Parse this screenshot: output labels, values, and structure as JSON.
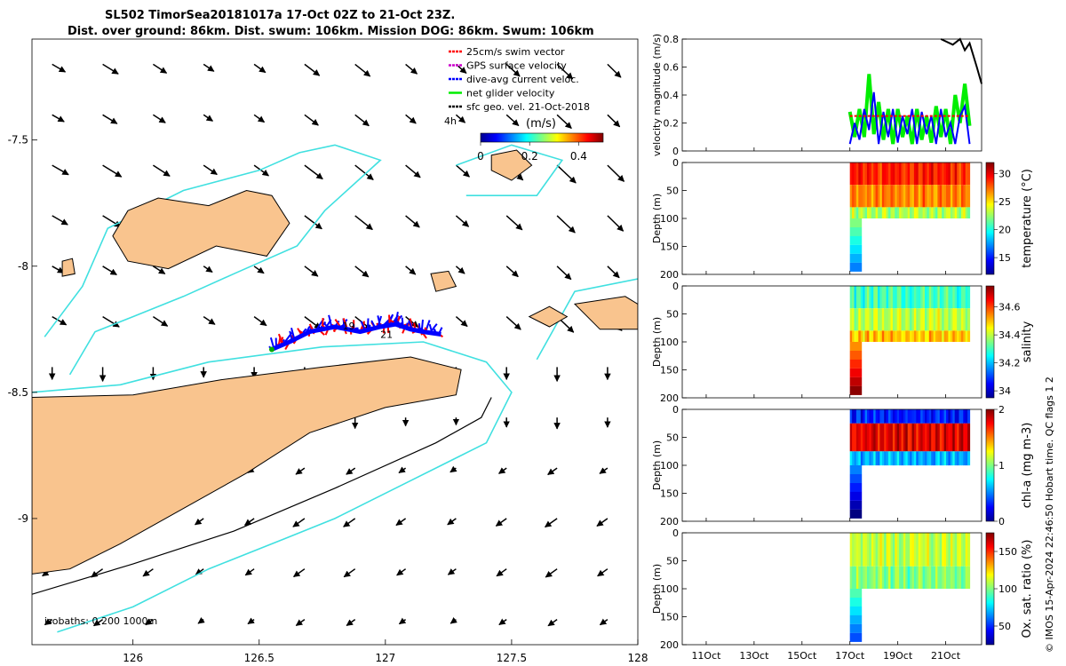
{
  "title_line1": "SL502 TimorSea20181017a 17-Oct 02Z to 21-Oct 23Z.",
  "title_line2": "Dist. over ground: 86km. Dist. swum: 106km. Mission DOG: 86km. Swum: 106km",
  "copyright": "© IMOS 15-Apr-2024 22:46:50 Hobart time. QC flags 1  2",
  "colors": {
    "land": "#f9c48e",
    "isobath_shallow": "#40e0e0",
    "isobath_deep": "#000000",
    "track_swim": "#ff0000",
    "track_current": "#0000ff",
    "net_velocity": "#00ee00",
    "gps_velocity": "#cc00cc"
  },
  "chart_data": [
    {
      "type": "map",
      "name": "glider-track-map",
      "xlim": [
        125.6,
        128.0
      ],
      "ylim": [
        -9.5,
        -7.1
      ],
      "xticks": [
        126,
        126.5,
        127,
        127.5,
        128
      ],
      "xtick_labels": [
        "126",
        "126.5",
        "127",
        "127.5",
        "128"
      ],
      "yticks": [
        -7.5,
        -8,
        -8.5,
        -9
      ],
      "ytick_labels": [
        "-7.5",
        "-8",
        "-8.5",
        "-9"
      ],
      "legend": [
        {
          "label": "25cm/s swim vector",
          "color": "#ff0000"
        },
        {
          "label": "GPS surface velocity",
          "color": "#cc00cc"
        },
        {
          "label": "dive-avg current veloc.",
          "color": "#0000ff"
        },
        {
          "label": "net glider velocity",
          "color": "#00ee00"
        },
        {
          "label": "sfc geo. vel. 21-Oct-2018",
          "color": "#000000"
        }
      ],
      "colorbar": {
        "label": "(m/s)",
        "ticks": [
          "0",
          "0.2",
          "0.4"
        ],
        "range": [
          0,
          0.5
        ],
        "side_label": "4h"
      },
      "isobath_label": "isobaths: 0   200  1000m",
      "track_day_labels": [
        "19",
        "21"
      ],
      "track": [
        [
          126.55,
          -8.33
        ],
        [
          126.62,
          -8.3
        ],
        [
          126.7,
          -8.26
        ],
        [
          126.8,
          -8.24
        ],
        [
          126.9,
          -8.26
        ],
        [
          126.98,
          -8.24
        ],
        [
          127.04,
          -8.23
        ],
        [
          127.1,
          -8.25
        ],
        [
          127.15,
          -8.26
        ],
        [
          127.22,
          -8.27
        ]
      ],
      "islands": [
        [
          [
            125.98,
            -7.78
          ],
          [
            126.1,
            -7.73
          ],
          [
            126.3,
            -7.76
          ],
          [
            126.45,
            -7.7
          ],
          [
            126.55,
            -7.72
          ],
          [
            126.62,
            -7.83
          ],
          [
            126.53,
            -7.96
          ],
          [
            126.33,
            -7.92
          ],
          [
            126.14,
            -8.01
          ],
          [
            125.98,
            -7.98
          ],
          [
            125.92,
            -7.88
          ]
        ],
        [
          [
            125.6,
            -8.52
          ],
          [
            126.0,
            -8.51
          ],
          [
            126.35,
            -8.45
          ],
          [
            126.75,
            -8.4
          ],
          [
            127.1,
            -8.36
          ],
          [
            127.3,
            -8.41
          ],
          [
            127.28,
            -8.51
          ],
          [
            127.0,
            -8.56
          ],
          [
            126.7,
            -8.66
          ],
          [
            126.45,
            -8.82
          ],
          [
            126.2,
            -8.96
          ],
          [
            125.95,
            -9.1
          ],
          [
            125.75,
            -9.2
          ],
          [
            125.6,
            -9.22
          ]
        ],
        [
          [
            127.75,
            -8.15
          ],
          [
            127.95,
            -8.12
          ],
          [
            128.0,
            -8.15
          ],
          [
            128.0,
            -8.25
          ],
          [
            127.85,
            -8.25
          ]
        ],
        [
          [
            127.57,
            -8.2
          ],
          [
            127.65,
            -8.16
          ],
          [
            127.72,
            -8.2
          ],
          [
            127.65,
            -8.24
          ]
        ],
        [
          [
            127.42,
            -7.56
          ],
          [
            127.52,
            -7.54
          ],
          [
            127.58,
            -7.6
          ],
          [
            127.5,
            -7.66
          ],
          [
            127.42,
            -7.62
          ]
        ],
        [
          [
            127.18,
            -8.03
          ],
          [
            127.25,
            -8.02
          ],
          [
            127.28,
            -8.08
          ],
          [
            127.2,
            -8.1
          ]
        ],
        [
          [
            125.72,
            -7.98
          ],
          [
            125.76,
            -7.97
          ],
          [
            125.77,
            -8.03
          ],
          [
            125.72,
            -8.04
          ]
        ]
      ],
      "isobath_200": [
        [
          [
            125.65,
            -8.28
          ],
          [
            125.8,
            -8.08
          ],
          [
            125.9,
            -7.85
          ],
          [
            126.2,
            -7.7
          ],
          [
            126.5,
            -7.62
          ],
          [
            126.66,
            -7.55
          ],
          [
            126.8,
            -7.52
          ],
          [
            126.98,
            -7.58
          ],
          [
            126.76,
            -7.78
          ],
          [
            126.65,
            -7.92
          ],
          [
            126.4,
            -8.03
          ],
          [
            126.2,
            -8.12
          ],
          [
            126.0,
            -8.2
          ],
          [
            125.85,
            -8.26
          ],
          [
            125.75,
            -8.43
          ]
        ],
        [
          [
            125.6,
            -8.5
          ],
          [
            125.95,
            -8.47
          ],
          [
            126.3,
            -8.38
          ],
          [
            126.75,
            -8.32
          ],
          [
            127.15,
            -8.3
          ],
          [
            127.4,
            -8.38
          ],
          [
            127.5,
            -8.5
          ],
          [
            127.4,
            -8.7
          ],
          [
            127.1,
            -8.85
          ],
          [
            126.8,
            -9.0
          ],
          [
            126.6,
            -9.08
          ],
          [
            126.3,
            -9.2
          ],
          [
            126.0,
            -9.35
          ],
          [
            125.7,
            -9.45
          ]
        ],
        [
          [
            127.6,
            -8.37
          ],
          [
            127.75,
            -8.1
          ],
          [
            128.0,
            -8.05
          ]
        ],
        [
          [
            127.28,
            -7.6
          ],
          [
            127.5,
            -7.52
          ],
          [
            127.7,
            -7.58
          ],
          [
            127.6,
            -7.72
          ],
          [
            127.32,
            -7.72
          ]
        ]
      ],
      "isobath_1000": [
        [
          [
            125.6,
            -9.3
          ],
          [
            126.0,
            -9.18
          ],
          [
            126.4,
            -9.05
          ],
          [
            126.8,
            -8.88
          ],
          [
            127.2,
            -8.7
          ],
          [
            127.38,
            -8.6
          ],
          [
            127.42,
            -8.52
          ]
        ]
      ],
      "vector_field_note": "surface geostrophic velocity arrows"
    },
    {
      "type": "line",
      "name": "velocity-panel",
      "ylabel": "velocity magnitude (m/s)",
      "ylim": [
        0,
        0.8
      ],
      "yticks": [
        "0",
        "0.2",
        "0.4",
        "0.6",
        "0.8"
      ],
      "xlim_days": [
        10,
        22.5
      ],
      "series": [
        {
          "name": "net glider velocity",
          "color": "#00ee00",
          "x": [
            17.0,
            17.2,
            17.4,
            17.6,
            17.8,
            18.0,
            18.2,
            18.4,
            18.6,
            18.8,
            19.0,
            19.2,
            19.4,
            19.6,
            19.8,
            20.0,
            20.2,
            20.4,
            20.6,
            20.8,
            21.0,
            21.2,
            21.4,
            21.6,
            21.8,
            22.0
          ],
          "y": [
            0.28,
            0.1,
            0.3,
            0.1,
            0.55,
            0.12,
            0.35,
            0.08,
            0.3,
            0.05,
            0.3,
            0.1,
            0.25,
            0.05,
            0.3,
            0.08,
            0.25,
            0.06,
            0.32,
            0.1,
            0.3,
            0.05,
            0.4,
            0.2,
            0.48,
            0.18
          ]
        },
        {
          "name": "dive-avg current veloc.",
          "color": "#0000ff",
          "x": [
            17.0,
            17.2,
            17.4,
            17.6,
            17.8,
            18.0,
            18.2,
            18.4,
            18.6,
            18.8,
            19.0,
            19.2,
            19.4,
            19.6,
            19.8,
            20.0,
            20.2,
            20.4,
            20.6,
            20.8,
            21.0,
            21.2,
            21.4,
            21.6,
            21.8,
            22.0
          ],
          "y": [
            0.05,
            0.2,
            0.08,
            0.3,
            0.15,
            0.42,
            0.05,
            0.28,
            0.1,
            0.3,
            0.06,
            0.25,
            0.12,
            0.3,
            0.05,
            0.28,
            0.12,
            0.25,
            0.05,
            0.3,
            0.1,
            0.2,
            0.05,
            0.25,
            0.32,
            0.05
          ]
        },
        {
          "name": "25cm/s swim vector",
          "color": "#ff0000",
          "x": [
            17.0,
            22.0
          ],
          "y": [
            0.25,
            0.25
          ]
        },
        {
          "name": "sfc geo. vel.",
          "color": "#000000",
          "x": [
            20.8,
            21.3,
            21.6,
            21.8,
            22.0,
            22.3,
            22.5
          ],
          "y": [
            0.8,
            0.76,
            0.8,
            0.72,
            0.77,
            0.6,
            0.48
          ]
        }
      ]
    },
    {
      "type": "heatmap",
      "name": "temperature-panel",
      "ylabel": "Depth (m)",
      "cblabel": "temperature (°C)",
      "ylim": [
        200,
        0
      ],
      "yticks": [
        "0",
        "50",
        "100",
        "150",
        "200"
      ],
      "cbticks": [
        "15",
        "20",
        "25",
        "30"
      ],
      "crange": [
        12,
        32
      ],
      "layers": [
        {
          "depth_from": 0,
          "depth_to": 40,
          "value": 29
        },
        {
          "depth_from": 40,
          "depth_to": 80,
          "value": 27
        },
        {
          "depth_from": 80,
          "depth_to": 100,
          "value": 23
        }
      ]
    },
    {
      "type": "heatmap",
      "name": "salinity-panel",
      "ylabel": "Depth (m)",
      "cblabel": "salinity",
      "ylim": [
        200,
        0
      ],
      "yticks": [
        "0",
        "50",
        "100",
        "150",
        "200"
      ],
      "cbticks": [
        "34",
        "34.2",
        "34.4",
        "34.6"
      ],
      "crange": [
        33.95,
        34.75
      ],
      "layers": [
        {
          "depth_from": 0,
          "depth_to": 40,
          "value": 34.3
        },
        {
          "depth_from": 40,
          "depth_to": 80,
          "value": 34.4
        },
        {
          "depth_from": 80,
          "depth_to": 100,
          "value": 34.5
        }
      ]
    },
    {
      "type": "heatmap",
      "name": "chla-panel",
      "ylabel": "Depth (m)",
      "cblabel": "chl-a (mg m-3)",
      "ylim": [
        200,
        0
      ],
      "yticks": [
        "0",
        "50",
        "100",
        "150",
        "200"
      ],
      "cbticks": [
        "0",
        "1",
        "2"
      ],
      "crange": [
        0,
        2
      ],
      "layers": [
        {
          "depth_from": 0,
          "depth_to": 25,
          "value": 0.3
        },
        {
          "depth_from": 25,
          "depth_to": 75,
          "value": 1.8
        },
        {
          "depth_from": 75,
          "depth_to": 100,
          "value": 0.6
        }
      ]
    },
    {
      "type": "heatmap",
      "name": "oxygen-panel",
      "ylabel": "Depth (m)",
      "cblabel": "Ox. sat. ratio (%)",
      "ylim": [
        200,
        0
      ],
      "yticks": [
        "0",
        "50",
        "100",
        "150",
        "200"
      ],
      "cbticks": [
        "50",
        "100",
        "150"
      ],
      "crange": [
        25,
        175
      ],
      "layers": [
        {
          "depth_from": 0,
          "depth_to": 60,
          "value": 110
        },
        {
          "depth_from": 60,
          "depth_to": 100,
          "value": 100
        }
      ]
    },
    {
      "type": "axis",
      "name": "time-axis",
      "xticks_days": [
        11,
        13,
        15,
        17,
        19,
        21
      ],
      "xtick_labels": [
        "11Oct",
        "13Oct",
        "15Oct",
        "17Oct",
        "19Oct",
        "21Oct"
      ],
      "data_start_day": 17.0,
      "data_end_day": 22.0,
      "profile_max_depth": 100,
      "first_deep_profile_depth": 195
    }
  ]
}
